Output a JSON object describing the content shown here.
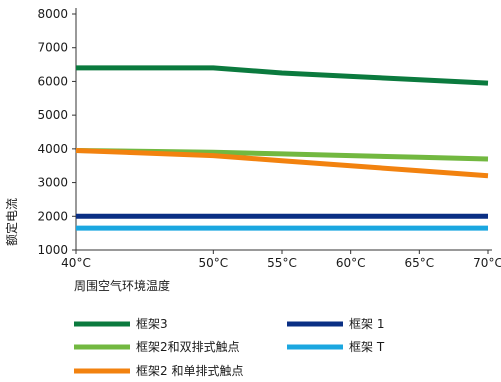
{
  "chart_data": {
    "type": "line",
    "xlabel": "周围空气环境温度",
    "ylabel": "额定电流",
    "x": [
      40,
      50,
      55,
      60,
      65,
      70
    ],
    "x_tick_labels": [
      "40°C",
      "50°C",
      "55°C",
      "60°C",
      "65°C",
      "70°C"
    ],
    "y_ticks": [
      1000,
      2000,
      3000,
      4000,
      5000,
      6000,
      7000,
      8000
    ],
    "xlim": [
      40,
      70
    ],
    "ylim": [
      1000,
      8000
    ],
    "grid": false,
    "legend_position": "bottom",
    "series": [
      {
        "name": "框架3",
        "color": "#0b7a3e",
        "values": [
          6400,
          6400,
          6250,
          6150,
          6050,
          5950
        ]
      },
      {
        "name": "框架2和双排式触点",
        "color": "#72b840",
        "values": [
          3950,
          3900,
          3850,
          3800,
          3750,
          3700
        ]
      },
      {
        "name": "框架2 和单排式触点",
        "color": "#f2820f",
        "values": [
          3950,
          3800,
          3650,
          3500,
          3350,
          3200
        ]
      },
      {
        "name": "框架 1",
        "color": "#0a2f84",
        "values": [
          2000,
          2000,
          2000,
          2000,
          2000,
          2000
        ]
      },
      {
        "name": "框架 T",
        "color": "#1ba7e0",
        "values": [
          1650,
          1650,
          1650,
          1650,
          1650,
          1650
        ]
      }
    ]
  }
}
